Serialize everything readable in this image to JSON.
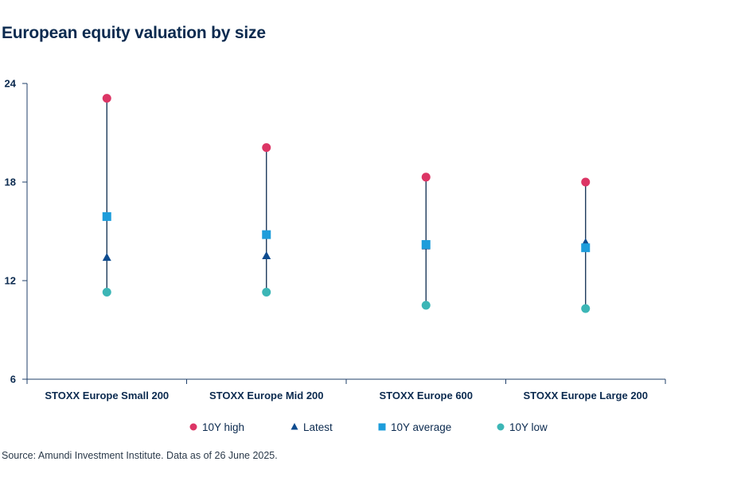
{
  "title": "European equity valuation by size",
  "source": "Source: Amundi Investment Institute. Data as of 26 June 2025.",
  "colors": {
    "high": "#dc3565",
    "latest": "#0f4c8f",
    "average": "#1e9ddb",
    "low": "#3cb6b6",
    "axis": "#1f3f6a",
    "range_line": "#0b2a4f"
  },
  "chart_data": {
    "type": "scatter",
    "title": "European equity valuation by size",
    "xlabel": "",
    "ylabel": "",
    "ylim": [
      6,
      24
    ],
    "yticks": [
      6,
      12,
      18,
      24
    ],
    "categories": [
      "STOXX Europe Small 200",
      "STOXX Europe Mid 200",
      "STOXX Europe 600",
      "STOXX Europe Large 200"
    ],
    "series": [
      {
        "key": "high",
        "name": "10Y high",
        "marker": "circle",
        "values": [
          23.1,
          20.1,
          18.3,
          18.0
        ]
      },
      {
        "key": "latest",
        "name": "Latest",
        "marker": "triangle",
        "values": [
          13.4,
          13.5,
          14.1,
          14.3
        ]
      },
      {
        "key": "average",
        "name": "10Y average",
        "marker": "square",
        "values": [
          15.9,
          14.8,
          14.2,
          14.0
        ]
      },
      {
        "key": "low",
        "name": "10Y low",
        "marker": "circle",
        "values": [
          11.3,
          11.3,
          10.5,
          10.3
        ]
      }
    ],
    "legend_position": "bottom"
  }
}
